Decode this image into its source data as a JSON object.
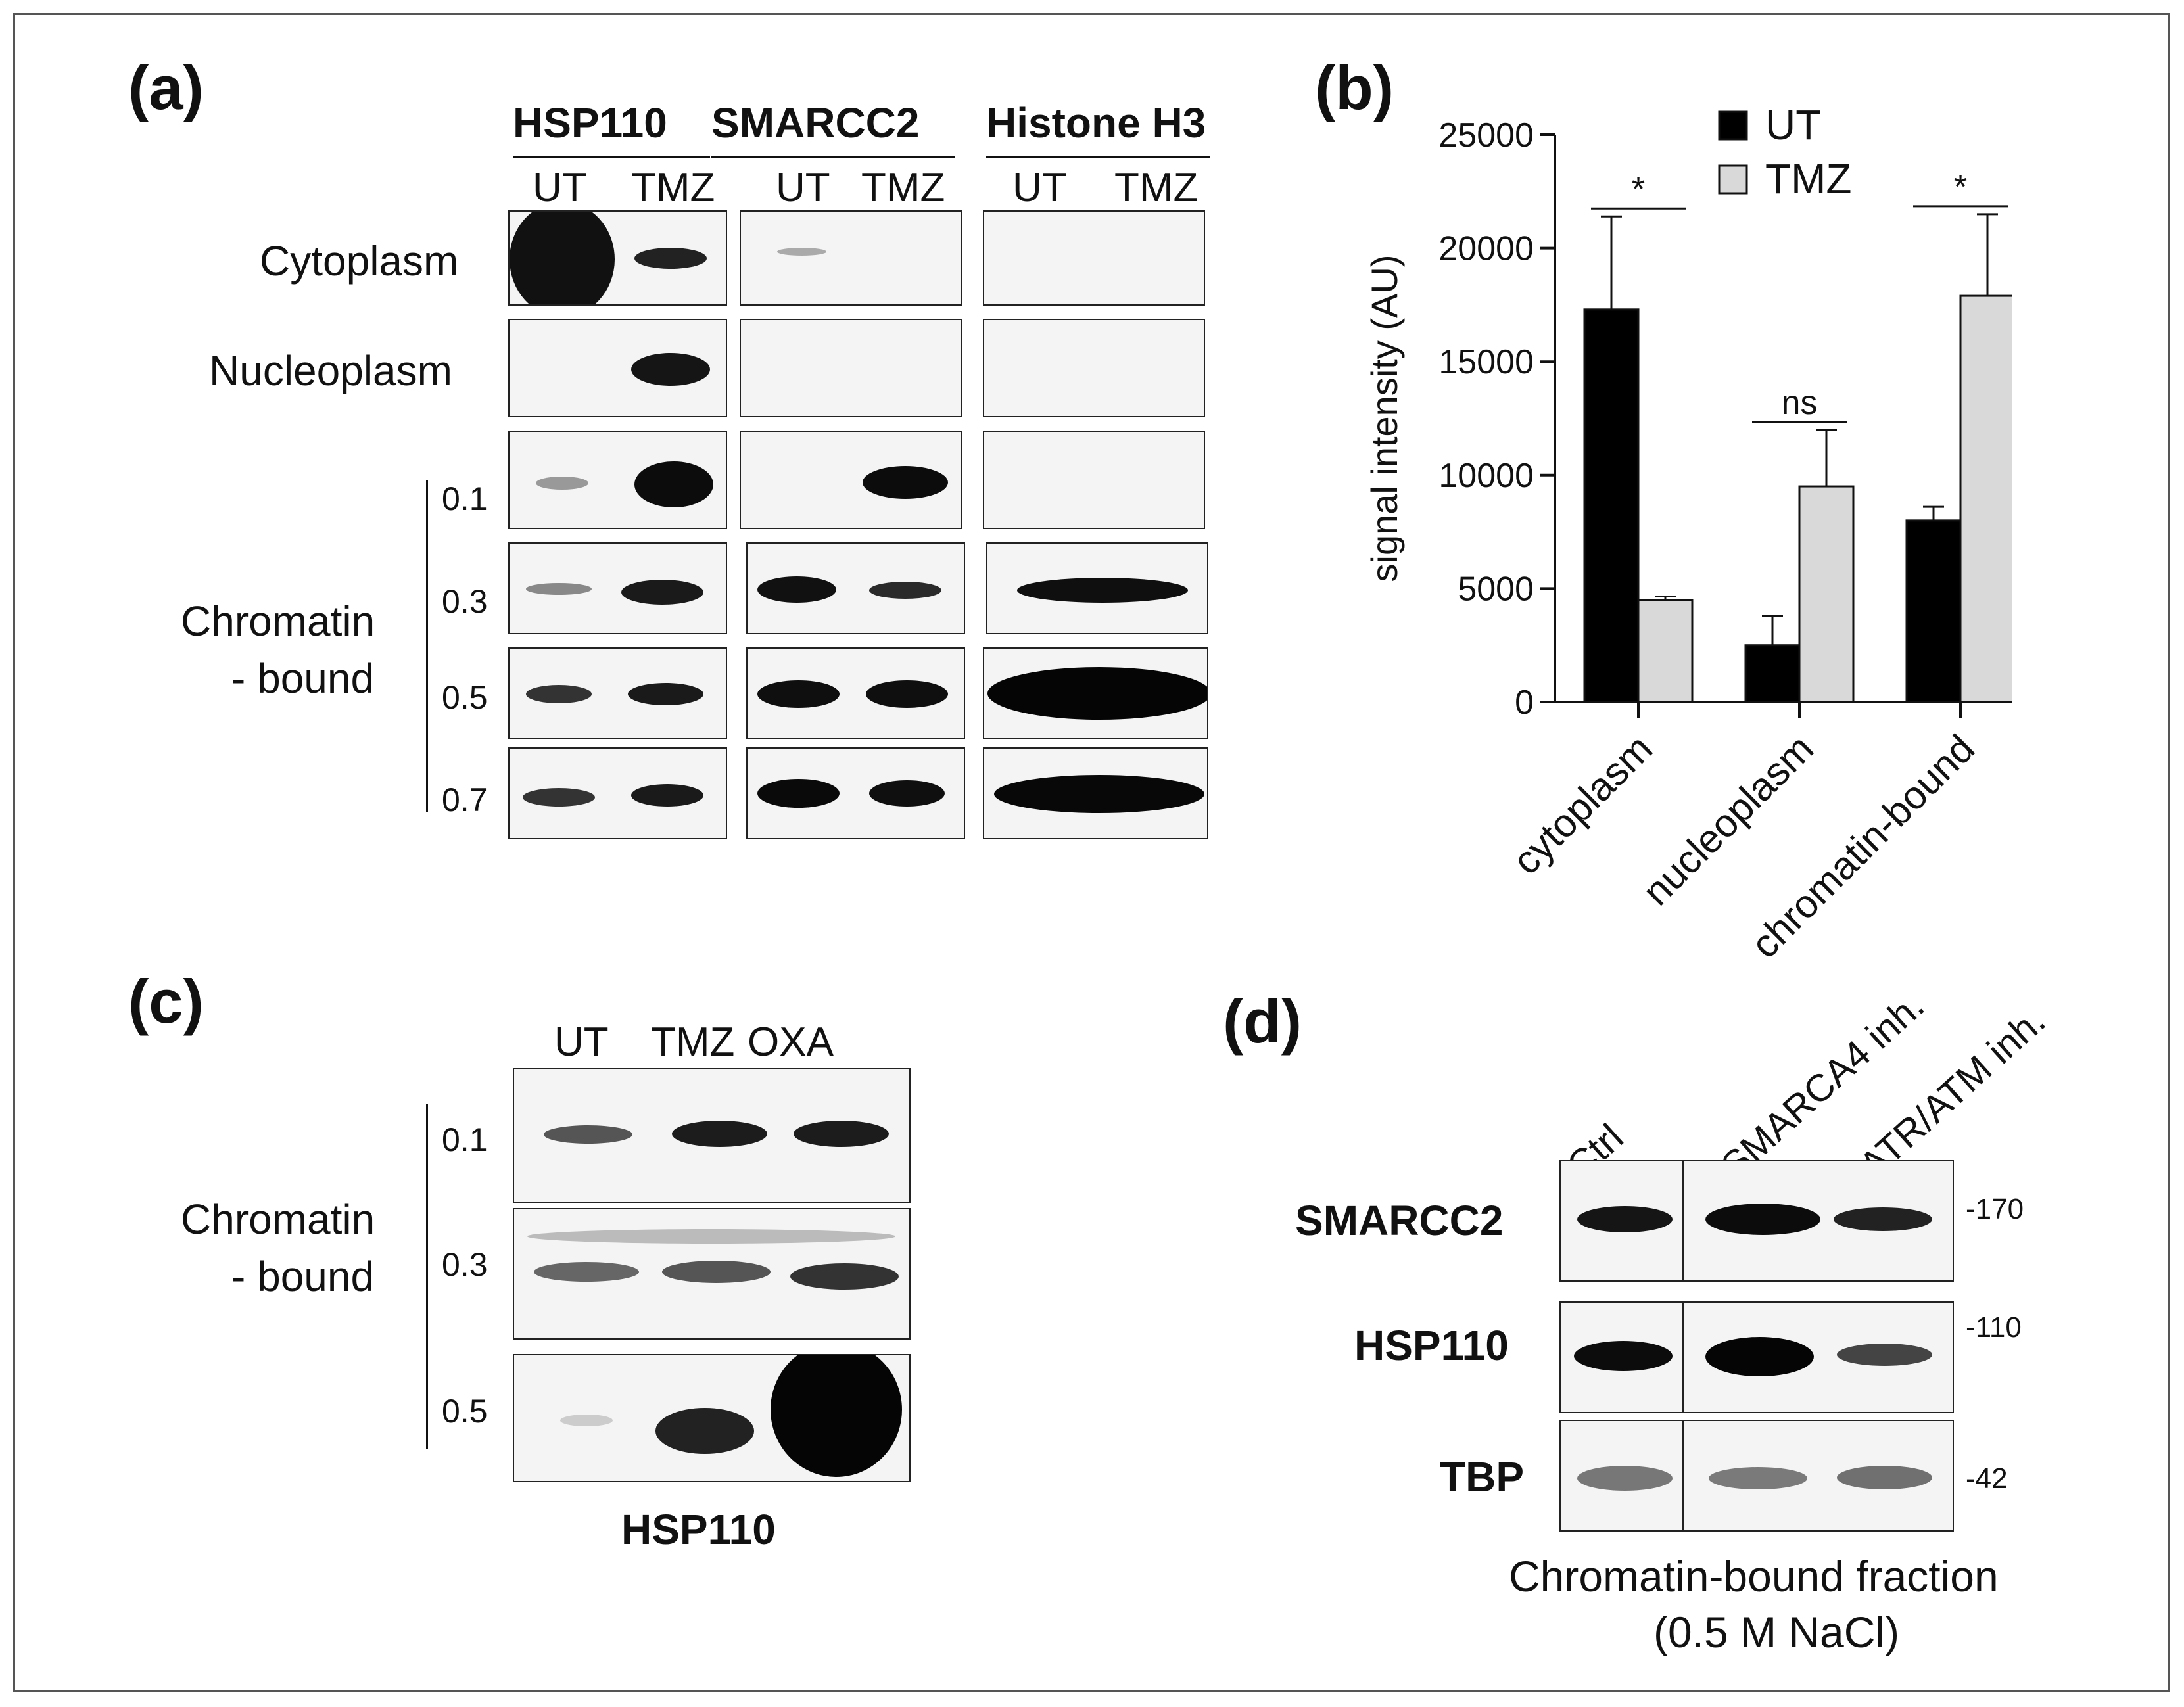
{
  "panels": {
    "a": "(a)",
    "b": "(b)",
    "c": "(c)",
    "d": "(d)"
  },
  "panel_a": {
    "proteins": [
      "HSP110",
      "SMARCC2",
      "Histone H3"
    ],
    "lanes": [
      "UT",
      "TMZ"
    ],
    "rows": {
      "cytoplasm": "Cytoplasm",
      "nucleoplasm": "Nucleoplasm",
      "chromatin_line1": "Chromatin",
      "chromatin_line2": "- bound"
    },
    "concentrations": [
      "0.1",
      "0.3",
      "0.5",
      "0.7"
    ]
  },
  "panel_c": {
    "lanes": [
      "UT",
      "TMZ",
      "OXA"
    ],
    "chromatin_line1": "Chromatin",
    "chromatin_line2": "- bound",
    "concentrations": [
      "0.1",
      "0.3",
      "0.5"
    ],
    "protein": "HSP110"
  },
  "panel_d": {
    "lanes": [
      "Ctrl",
      "SMARCA4 inh.",
      "ATR/ATM inh."
    ],
    "rows": [
      "SMARCC2",
      "HSP110",
      "TBP"
    ],
    "mw": [
      "-170",
      "-110",
      "-42"
    ],
    "caption_line1": "Chromatin-bound fraction",
    "caption_line2": "(0.5 M NaCl)"
  },
  "chart_data": {
    "type": "bar",
    "categories": [
      "cytoplasm",
      "nucleoplasm",
      "chromatin-bound"
    ],
    "series": [
      {
        "name": "UT",
        "values": [
          17300,
          2500,
          8000
        ],
        "errors": [
          4100,
          1300,
          600
        ],
        "color": "#000000"
      },
      {
        "name": "TMZ",
        "values": [
          4500,
          9500,
          17900
        ],
        "errors": [
          150,
          2500,
          3600
        ],
        "color": "#d9d9d9"
      }
    ],
    "ylabel": "signal intensity (AU)",
    "ylim": [
      0,
      25000
    ],
    "yticks": [
      0,
      5000,
      10000,
      15000,
      20000,
      25000
    ],
    "significance": [
      "*",
      "ns",
      "*"
    ],
    "legend": "top"
  }
}
